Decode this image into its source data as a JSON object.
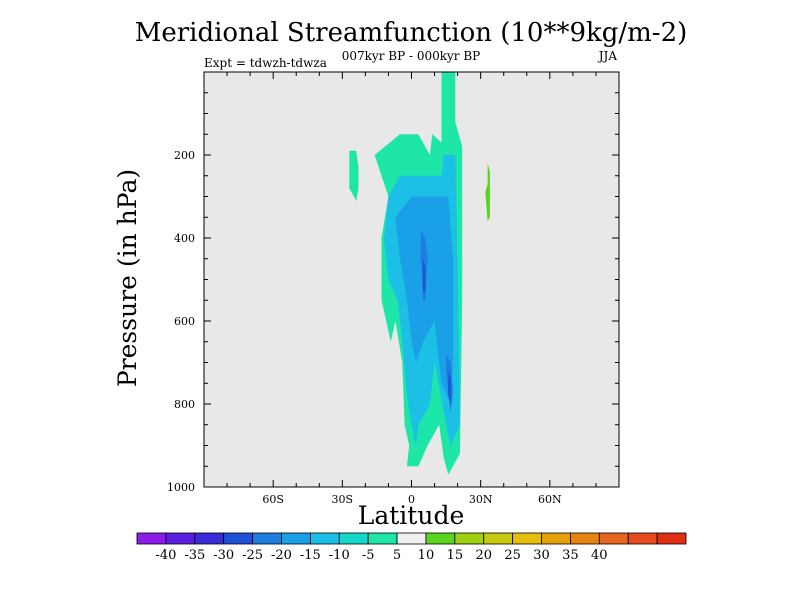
{
  "chart_data": {
    "type": "contour",
    "title": "Meridional Streamfunction (10**9kg/m-2)",
    "subtitle_center": "007kyr BP - 000kyr BP",
    "subtitle_left": "Expt = tdwzh-tdwza",
    "subtitle_right": "JJA",
    "xlabel": "Latitude",
    "ylabel": "Pressure (in hPa)",
    "xlim": [
      -90,
      90
    ],
    "ylim": [
      0,
      1000
    ],
    "y_inverted": true,
    "x_ticks": [
      {
        "value": -60,
        "label": "60S"
      },
      {
        "value": -30,
        "label": "30S"
      },
      {
        "value": 0,
        "label": "0"
      },
      {
        "value": 30,
        "label": "30N"
      },
      {
        "value": 60,
        "label": "60N"
      }
    ],
    "y_ticks": [
      {
        "value": 200,
        "label": "200"
      },
      {
        "value": 400,
        "label": "400"
      },
      {
        "value": 600,
        "label": "600"
      },
      {
        "value": 800,
        "label": "800"
      },
      {
        "value": 1000,
        "label": "1000"
      }
    ],
    "background_color": "#e8e8e8",
    "colorbar": {
      "labels": [
        "-40",
        "-35",
        "-30",
        "-25",
        "-20",
        "-15",
        "-10",
        "-5",
        "5",
        "10",
        "15",
        "20",
        "25",
        "30",
        "35",
        "40"
      ],
      "colors": [
        "#8b1be8",
        "#5a1ee0",
        "#3a2ad8",
        "#1e50d8",
        "#1e7ee0",
        "#1aa0e6",
        "#1cc0e6",
        "#16d8c8",
        "#1ee6a8",
        "#f0f0f0",
        "#5ad41e",
        "#a0d014",
        "#c8c810",
        "#e6be0a",
        "#e6a00a",
        "#e68412",
        "#e6661e",
        "#e64a1e",
        "#e02e14"
      ]
    },
    "regions": [
      {
        "level": -10,
        "color": "#1ee6a8",
        "points": [
          [
            -16,
            20
          ],
          [
            -5,
            15
          ],
          [
            3,
            15
          ],
          [
            8,
            20
          ],
          [
            9,
            15
          ],
          [
            13,
            17
          ],
          [
            13,
            -0.5
          ],
          [
            19,
            -0.5
          ],
          [
            19,
            12
          ],
          [
            22,
            18
          ],
          [
            22,
            55
          ],
          [
            21,
            92
          ],
          [
            16,
            97
          ],
          [
            14,
            93
          ],
          [
            12,
            85
          ],
          [
            7,
            90
          ],
          [
            3,
            95
          ],
          [
            -2,
            95
          ],
          [
            -1,
            90
          ],
          [
            -3,
            85
          ],
          [
            -4,
            70
          ],
          [
            -7,
            60
          ],
          [
            -9,
            65
          ],
          [
            -13,
            55
          ],
          [
            -13,
            40
          ],
          [
            -10,
            30
          ]
        ]
      },
      {
        "level": -10,
        "color": "#1ee6a8",
        "points": [
          [
            -27,
            19
          ],
          [
            -24,
            19
          ],
          [
            -23,
            23
          ],
          [
            -23,
            28
          ],
          [
            -24,
            31
          ],
          [
            -27,
            28
          ],
          [
            -27,
            23
          ]
        ]
      },
      {
        "level": -15,
        "color": "#1cc0e6",
        "points": [
          [
            -10,
            30
          ],
          [
            -5,
            25
          ],
          [
            5,
            25
          ],
          [
            13,
            25
          ],
          [
            14,
            20
          ],
          [
            19,
            20
          ],
          [
            20,
            45
          ],
          [
            21,
            85
          ],
          [
            17,
            90
          ],
          [
            15,
            85
          ],
          [
            10,
            70
          ],
          [
            8,
            80
          ],
          [
            3,
            85
          ],
          [
            2,
            90
          ],
          [
            0,
            85
          ],
          [
            -2,
            78
          ],
          [
            -4,
            65
          ],
          [
            -6,
            55
          ],
          [
            -10,
            50
          ],
          [
            -12,
            40
          ]
        ]
      },
      {
        "level": -20,
        "color": "#1aa0e6",
        "points": [
          [
            -7,
            35
          ],
          [
            0,
            30
          ],
          [
            7,
            30
          ],
          [
            13,
            30
          ],
          [
            16,
            30
          ],
          [
            18,
            45
          ],
          [
            18,
            70
          ],
          [
            17,
            80
          ],
          [
            13,
            75
          ],
          [
            10,
            60
          ],
          [
            5,
            65
          ],
          [
            2,
            70
          ],
          [
            0,
            65
          ],
          [
            -2,
            55
          ],
          [
            -5,
            45
          ]
        ]
      },
      {
        "level": -25,
        "color": "#1e7ee0",
        "points": [
          [
            4,
            38
          ],
          [
            6,
            40
          ],
          [
            7,
            45
          ],
          [
            6,
            55
          ],
          [
            5,
            55
          ],
          [
            4,
            45
          ]
        ]
      },
      {
        "level": -25,
        "color": "#1e7ee0",
        "points": [
          [
            15,
            68
          ],
          [
            17,
            70
          ],
          [
            18,
            77
          ],
          [
            17,
            82
          ],
          [
            16,
            78
          ],
          [
            15,
            72
          ]
        ]
      },
      {
        "level": -30,
        "color": "#1e50d8",
        "points": [
          [
            5,
            45
          ],
          [
            6,
            47
          ],
          [
            6,
            53
          ],
          [
            5,
            53
          ]
        ]
      },
      {
        "level": -30,
        "color": "#1e50d8",
        "points": [
          [
            16,
            72
          ],
          [
            17,
            74
          ],
          [
            17,
            80
          ],
          [
            16,
            78
          ]
        ]
      },
      {
        "level": 10,
        "color": "#5ad41e",
        "points": [
          [
            33,
            22
          ],
          [
            34,
            24
          ],
          [
            34,
            35
          ],
          [
            33,
            36
          ],
          [
            32,
            29
          ],
          [
            33,
            27
          ]
        ]
      }
    ]
  }
}
